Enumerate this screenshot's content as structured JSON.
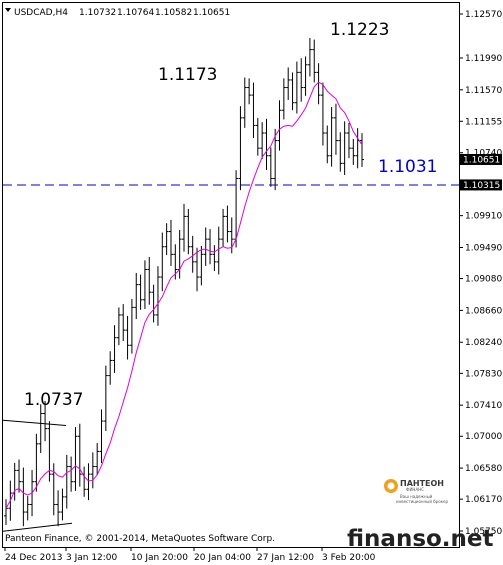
{
  "header": {
    "symbol": "USDCAD,H4",
    "open": "1.10732",
    "high": "1.10764",
    "low": "1.10582",
    "close": "1.10651"
  },
  "copyright": "Panteon Finance, © 2001-2014, MetaQuotes Software Corp.",
  "watermark": "finanso.net",
  "logo": {
    "name": "ПАНТЕОН",
    "sub_line1": "ФИНАНС",
    "sub_line2": "Ваш надежный",
    "sub_line3": "инвестиционный брокер"
  },
  "chart_data": {
    "type": "candlestick",
    "y_ticks": [
      "1.12570",
      "1.11990",
      "1.11570",
      "1.11155",
      "1.10740",
      "1.09910",
      "1.09490",
      "1.09080",
      "1.08660",
      "1.08240",
      "1.07830",
      "1.07410",
      "1.07000",
      "1.06580",
      "1.06170",
      "1.05750"
    ],
    "x_ticks": [
      "24 Dec 2013",
      "3 Jan 12:00",
      "10 Jan 20:00",
      "20 Jan 04:00",
      "27 Jan 12:00",
      "3 Feb 20:00"
    ],
    "current_price_label": "1.10651",
    "current_price": 1.10651,
    "level_price_label": "1.10315",
    "level_price": 1.10315,
    "level_annotation": "1.1031",
    "annotations": [
      {
        "text": "1.0737",
        "price": 1.0737
      },
      {
        "text": "1.1173",
        "price": 1.1173
      },
      {
        "text": "1.1223",
        "price": 1.1223
      }
    ],
    "trendline": {
      "from_price": 1.0737,
      "to_price": 1.073
    },
    "lower_line": {
      "price": 1.058
    },
    "colors": {
      "price": "#000000",
      "moving_average": "#e000e0",
      "level_line": "#0000cc",
      "label_bg": "#000000",
      "label_text": "#ffffff"
    },
    "ylim": [
      1.0575,
      1.1257
    ],
    "series": [
      {
        "name": "",
        "values": [
          1.0605,
          1.0625,
          1.0655,
          1.064,
          1.06,
          1.061,
          1.064,
          1.069,
          1.073,
          1.071,
          1.065,
          1.061,
          1.06,
          1.062,
          1.066,
          1.064,
          1.07,
          1.065,
          1.063,
          1.065,
          1.066,
          1.068,
          1.072,
          1.078,
          1.08,
          1.083,
          1.086,
          1.084,
          1.082,
          1.087,
          1.09,
          1.088,
          1.092,
          1.089,
          1.086,
          1.091,
          1.095,
          1.097,
          1.094,
          1.092,
          1.096,
          1.099,
          1.095,
          1.093,
          1.091,
          1.094,
          1.096,
          1.094,
          1.093,
          1.096,
          1.099,
          1.097,
          1.096,
          1.104,
          1.112,
          1.116,
          1.115,
          1.111,
          1.108,
          1.11,
          1.107,
          1.104,
          1.109,
          1.113,
          1.116,
          1.117,
          1.114,
          1.118,
          1.116,
          1.119,
          1.121,
          1.118,
          1.115,
          1.11,
          1.107,
          1.112,
          1.109,
          1.106,
          1.11,
          1.108,
          1.107,
          1.109,
          1.1065
        ]
      }
    ]
  }
}
